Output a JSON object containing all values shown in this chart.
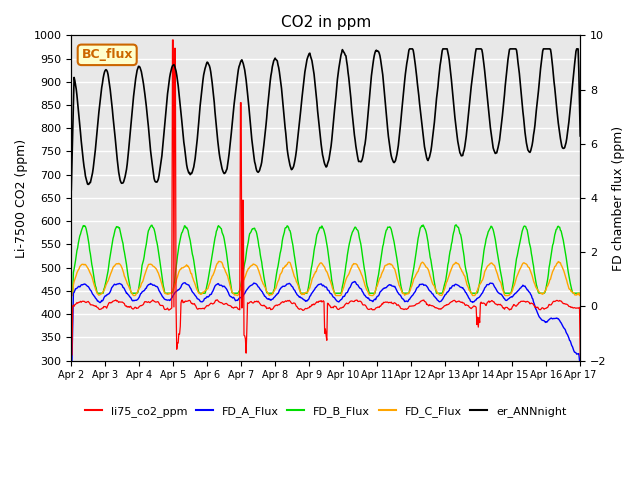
{
  "title": "CO2 in ppm",
  "ylabel_left": "Li-7500 CO2 (ppm)",
  "ylabel_right": "FD chamber flux (ppm)",
  "ylim_left": [
    300,
    1000
  ],
  "ylim_right": [
    -2,
    10
  ],
  "yticks_left": [
    300,
    350,
    400,
    450,
    500,
    550,
    600,
    650,
    700,
    750,
    800,
    850,
    900,
    950,
    1000
  ],
  "yticks_right": [
    -2,
    0,
    2,
    4,
    6,
    8,
    10
  ],
  "xtick_labels": [
    "Apr 2",
    "Apr 3",
    "Apr 4",
    "Apr 5",
    "Apr 6",
    "Apr 7",
    "Apr 8",
    "Apr 9",
    "Apr 10",
    "Apr 11",
    "Apr 12",
    "Apr 13",
    "Apr 14",
    "Apr 15",
    "Apr 16",
    "Apr 17"
  ],
  "annotation_text": "BC_flux",
  "annotation_fg": "#cc6600",
  "annotation_bg": "#ffffcc",
  "annotation_edge": "#cc6600",
  "bg_color": "#e8e8e8",
  "grid_color": "#ffffff",
  "colors": {
    "li75": "#ff0000",
    "fd_a": "#0000ff",
    "fd_b": "#00dd00",
    "fd_c": "#ffa500",
    "ann": "#000000"
  }
}
